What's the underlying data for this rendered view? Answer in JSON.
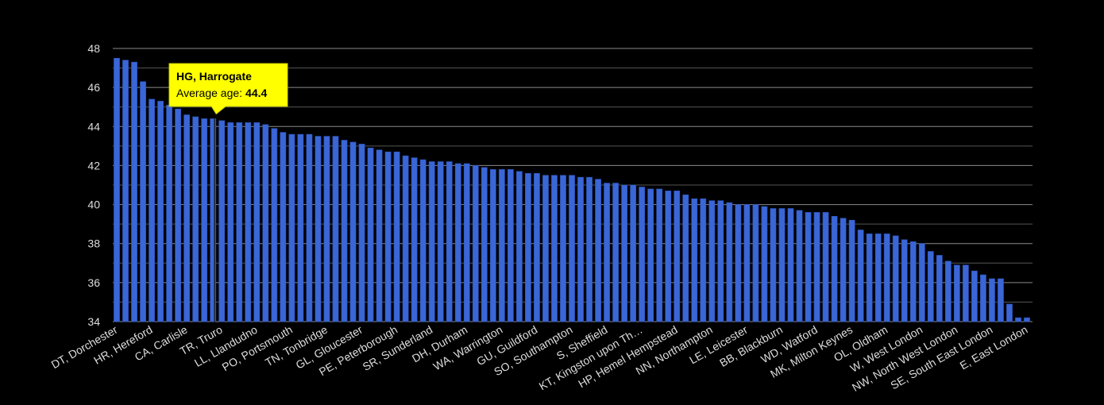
{
  "chart_data": {
    "type": "bar",
    "categories": [
      "DT, Dorchester",
      null,
      null,
      null,
      "HR, Hereford",
      null,
      null,
      null,
      "CA, Carlisle",
      null,
      null,
      null,
      "TR, Truro",
      null,
      null,
      null,
      "LL, Llandudno",
      null,
      null,
      null,
      "PO, Portsmouth",
      null,
      null,
      null,
      "TN, Tonbridge",
      null,
      null,
      null,
      "GL, Gloucester",
      null,
      null,
      null,
      "PE, Peterborough",
      null,
      null,
      null,
      "SR, Sunderland",
      null,
      null,
      null,
      "DH, Durham",
      null,
      null,
      null,
      "WA, Warrington",
      null,
      null,
      null,
      "GU, Guildford",
      null,
      null,
      null,
      "SO, Southampton",
      null,
      null,
      null,
      "S, Sheffield",
      null,
      null,
      null,
      "KT, Kingston upon Th…",
      null,
      null,
      null,
      "HP, Hemel Hempstead",
      null,
      null,
      null,
      "NN, Northampton",
      null,
      null,
      null,
      "LE, Leicester",
      null,
      null,
      null,
      "BB, Blackburn",
      null,
      null,
      null,
      "WD, Watford",
      null,
      null,
      null,
      "MK, Milton Keynes",
      null,
      null,
      null,
      "OL, Oldham",
      null,
      null,
      null,
      "W, West London",
      null,
      null,
      null,
      "NW, North West London",
      null,
      null,
      null,
      "SE, South East London",
      null,
      null,
      null,
      "E, East London"
    ],
    "values": [
      47.5,
      47.4,
      47.3,
      46.3,
      45.4,
      45.3,
      45.1,
      44.9,
      44.6,
      44.5,
      44.4,
      44.4,
      44.3,
      44.2,
      44.2,
      44.2,
      44.2,
      44.1,
      43.9,
      43.7,
      43.6,
      43.6,
      43.6,
      43.5,
      43.5,
      43.5,
      43.3,
      43.2,
      43.1,
      42.9,
      42.8,
      42.7,
      42.7,
      42.5,
      42.4,
      42.3,
      42.2,
      42.2,
      42.2,
      42.1,
      42.1,
      42.0,
      41.9,
      41.8,
      41.8,
      41.8,
      41.7,
      41.6,
      41.6,
      41.5,
      41.5,
      41.5,
      41.5,
      41.4,
      41.4,
      41.3,
      41.1,
      41.1,
      41.0,
      41.0,
      40.9,
      40.8,
      40.8,
      40.7,
      40.7,
      40.5,
      40.3,
      40.3,
      40.2,
      40.2,
      40.1,
      40.0,
      40.0,
      40.0,
      39.9,
      39.8,
      39.8,
      39.8,
      39.7,
      39.6,
      39.6,
      39.6,
      39.4,
      39.3,
      39.2,
      38.7,
      38.5,
      38.5,
      38.5,
      38.4,
      38.2,
      38.1,
      38.0,
      37.6,
      37.4,
      37.1,
      36.9,
      36.9,
      36.6,
      36.4,
      36.2,
      36.2,
      34.9,
      34.2,
      34.2
    ],
    "color": "#3a66d6",
    "ylim": [
      34,
      48
    ],
    "yticks": [
      34,
      36,
      38,
      40,
      42,
      44,
      46,
      48
    ],
    "minor_yticks": [
      35,
      37,
      39,
      41,
      43,
      45,
      47
    ],
    "grid": true,
    "tooltip": {
      "index": 11,
      "title": "HG, Harrogate",
      "label": "Average age:"
    }
  }
}
